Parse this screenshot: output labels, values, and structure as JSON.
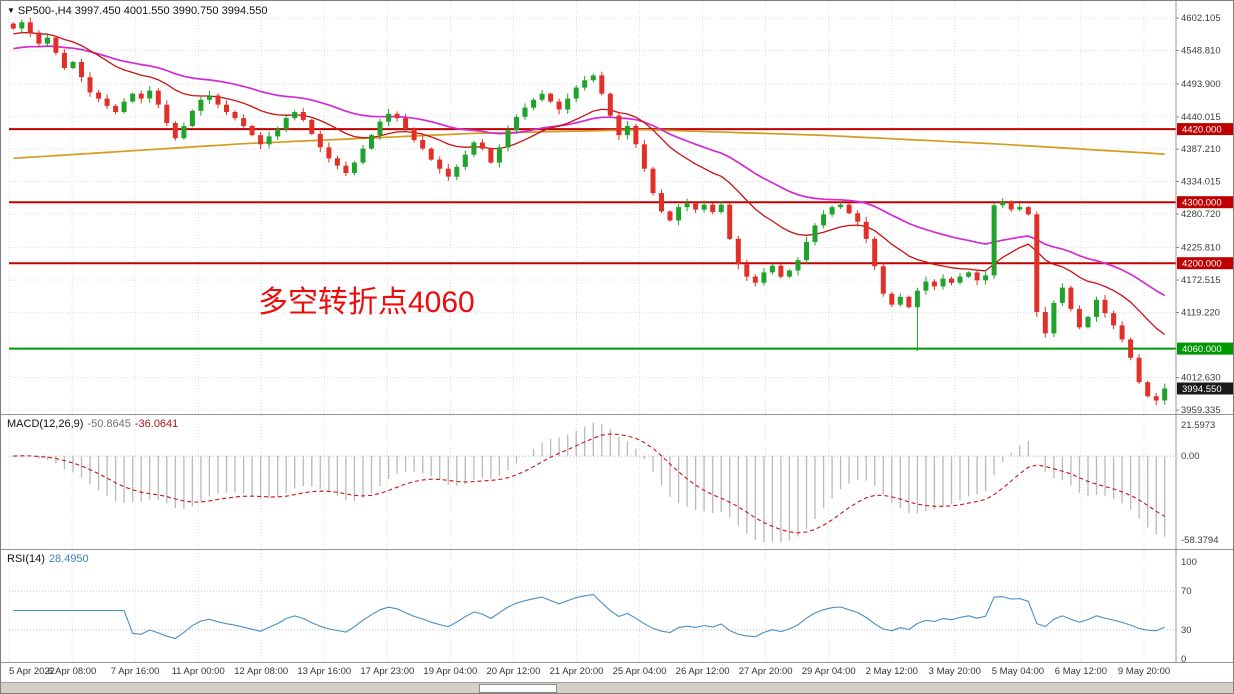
{
  "header": {
    "dropdown_icon": "▼",
    "title": "SP500-,H4 3997.450 4001.550 3990.750 3994.550"
  },
  "annotation": {
    "text": "多空转折点4060",
    "color": "#ee0b0b"
  },
  "indicators": {
    "macd": {
      "name": "MACD(12,26,9)",
      "value_main": "-50.8645",
      "value_signal": "-36.0641",
      "axis": [
        {
          "label": "21.5973",
          "value": 21.5973
        },
        {
          "label": "0.00",
          "value": 0
        },
        {
          "label": "-58.3794",
          "value": -58.3794
        }
      ]
    },
    "rsi": {
      "name": "RSI(14)",
      "value": "28.4950",
      "axis": [
        {
          "label": "100",
          "value": 100
        },
        {
          "label": "70",
          "value": 70
        },
        {
          "label": "30",
          "value": 30
        },
        {
          "label": "0",
          "value": 0
        }
      ]
    }
  },
  "price_axis": {
    "labels": [
      {
        "label": "4602.105",
        "value": 4602.105
      },
      {
        "label": "4548.810",
        "value": 4548.81
      },
      {
        "label": "4493.900",
        "value": 4493.9
      },
      {
        "label": "4440.015",
        "value": 4440.015
      },
      {
        "label": "4387.210",
        "value": 4387.21
      },
      {
        "label": "4334.015",
        "value": 4334.015
      },
      {
        "label": "4280.720",
        "value": 4280.72
      },
      {
        "label": "4225.810",
        "value": 4225.81
      },
      {
        "label": "4172.515",
        "value": 4172.515
      },
      {
        "label": "4119.220",
        "value": 4119.22
      },
      {
        "label": "4012.630",
        "value": 4012.63
      },
      {
        "label": "3959.335",
        "value": 3959.335
      }
    ],
    "levels": [
      {
        "label": "4420.000",
        "value": 4420.0,
        "bg": "#c00000"
      },
      {
        "label": "4300.000",
        "value": 4300.0,
        "bg": "#c00000"
      },
      {
        "label": "4200.000",
        "value": 4200.0,
        "bg": "#c00000"
      },
      {
        "label": "4060.000",
        "value": 4060.0,
        "bg": "#009800"
      },
      {
        "label": "3994.550",
        "value": 3994.55,
        "bg": "#1a1a1a"
      }
    ]
  },
  "time_axis": {
    "labels": [
      "5 Apr 2022",
      "6 Apr 08:00",
      "7 Apr 16:00",
      "11 Apr 00:00",
      "12 Apr 08:00",
      "13 Apr 16:00",
      "17 Apr 23:00",
      "19 Apr 04:00",
      "20 Apr 12:00",
      "21 Apr 20:00",
      "25 Apr 04:00",
      "26 Apr 12:00",
      "27 Apr 20:00",
      "29 Apr 04:00",
      "2 May 12:00",
      "3 May 20:00",
      "5 May 04:00",
      "6 May 12:00",
      "9 May 20:00"
    ]
  },
  "chart_data": {
    "type": "candlestick",
    "symbol": "SP500-",
    "timeframe": "H4",
    "last_ohlc": {
      "open": 3997.45,
      "high": 4001.55,
      "low": 3990.75,
      "close": 3994.55
    },
    "ylim": [
      3959.335,
      4602.105
    ],
    "first_open": 4593,
    "closes": [
      4585,
      4595,
      4578,
      4560,
      4570,
      4545,
      4520,
      4530,
      4505,
      4480,
      4470,
      4458,
      4448,
      4465,
      4478,
      4470,
      4483,
      4460,
      4430,
      4405,
      4425,
      4450,
      4468,
      4475,
      4460,
      4448,
      4438,
      4425,
      4410,
      4395,
      4408,
      4420,
      4438,
      4448,
      4435,
      4412,
      4390,
      4372,
      4360,
      4348,
      4365,
      4388,
      4410,
      4432,
      4445,
      4438,
      4420,
      4402,
      4388,
      4370,
      4355,
      4342,
      4358,
      4378,
      4398,
      4388,
      4365,
      4390,
      4418,
      4440,
      4455,
      4468,
      4478,
      4465,
      4452,
      4470,
      4488,
      4500,
      4508,
      4478,
      4442,
      4410,
      4425,
      4395,
      4355,
      4315,
      4285,
      4270,
      4292,
      4298,
      4288,
      4296,
      4284,
      4296,
      4240,
      4198,
      4178,
      4168,
      4185,
      4196,
      4178,
      4188,
      4205,
      4235,
      4262,
      4280,
      4292,
      4296,
      4282,
      4268,
      4240,
      4195,
      4150,
      4132,
      4145,
      4128,
      4155,
      4170,
      4162,
      4175,
      4168,
      4178,
      4185,
      4172,
      4180,
      4295,
      4300,
      4288,
      4292,
      4280,
      4120,
      4085,
      4135,
      4160,
      4125,
      4095,
      4112,
      4140,
      4118,
      4098,
      4075,
      4045,
      4005,
      3982,
      3975,
      3994.55
    ],
    "low_overrides": {
      "106": 4056
    },
    "hlines": [
      {
        "value": 4420,
        "color": "#c00000"
      },
      {
        "value": 4300,
        "color": "#c00000"
      },
      {
        "value": 4200,
        "color": "#c00000"
      },
      {
        "value": 4060,
        "color": "#009800"
      }
    ],
    "moving_averages": [
      {
        "name": "ma-slow",
        "color": "#d49c1e",
        "points": [
          [
            0,
            4372
          ],
          [
            0.2,
            4396
          ],
          [
            0.4,
            4413
          ],
          [
            0.55,
            4419
          ],
          [
            0.7,
            4410
          ],
          [
            0.85,
            4396
          ],
          [
            1,
            4379
          ]
        ]
      },
      {
        "name": "ma-mid",
        "color": "#d42ad4",
        "period": 40,
        "seed": 4550
      },
      {
        "name": "ma-fast",
        "color": "#cc1111",
        "period": 18,
        "seed": 4575
      }
    ],
    "macd": {
      "fast": 12,
      "slow": 26,
      "signal": 9,
      "last_main": -50.8645,
      "last_signal": -36.0641,
      "ylim": [
        -58.3794,
        21.5973
      ]
    },
    "rsi": {
      "period": 14,
      "last": 28.495,
      "levels": [
        30,
        70
      ],
      "ylim": [
        0,
        100
      ]
    },
    "colors": {
      "up": "#1fa32b",
      "down": "#e03028",
      "macd_hist": "#b8b8c0",
      "macd_signal": "#cc1111",
      "rsi": "#4a8fc7",
      "grid": "#dcdcdc",
      "axis_text": "#3c3c3c"
    }
  }
}
